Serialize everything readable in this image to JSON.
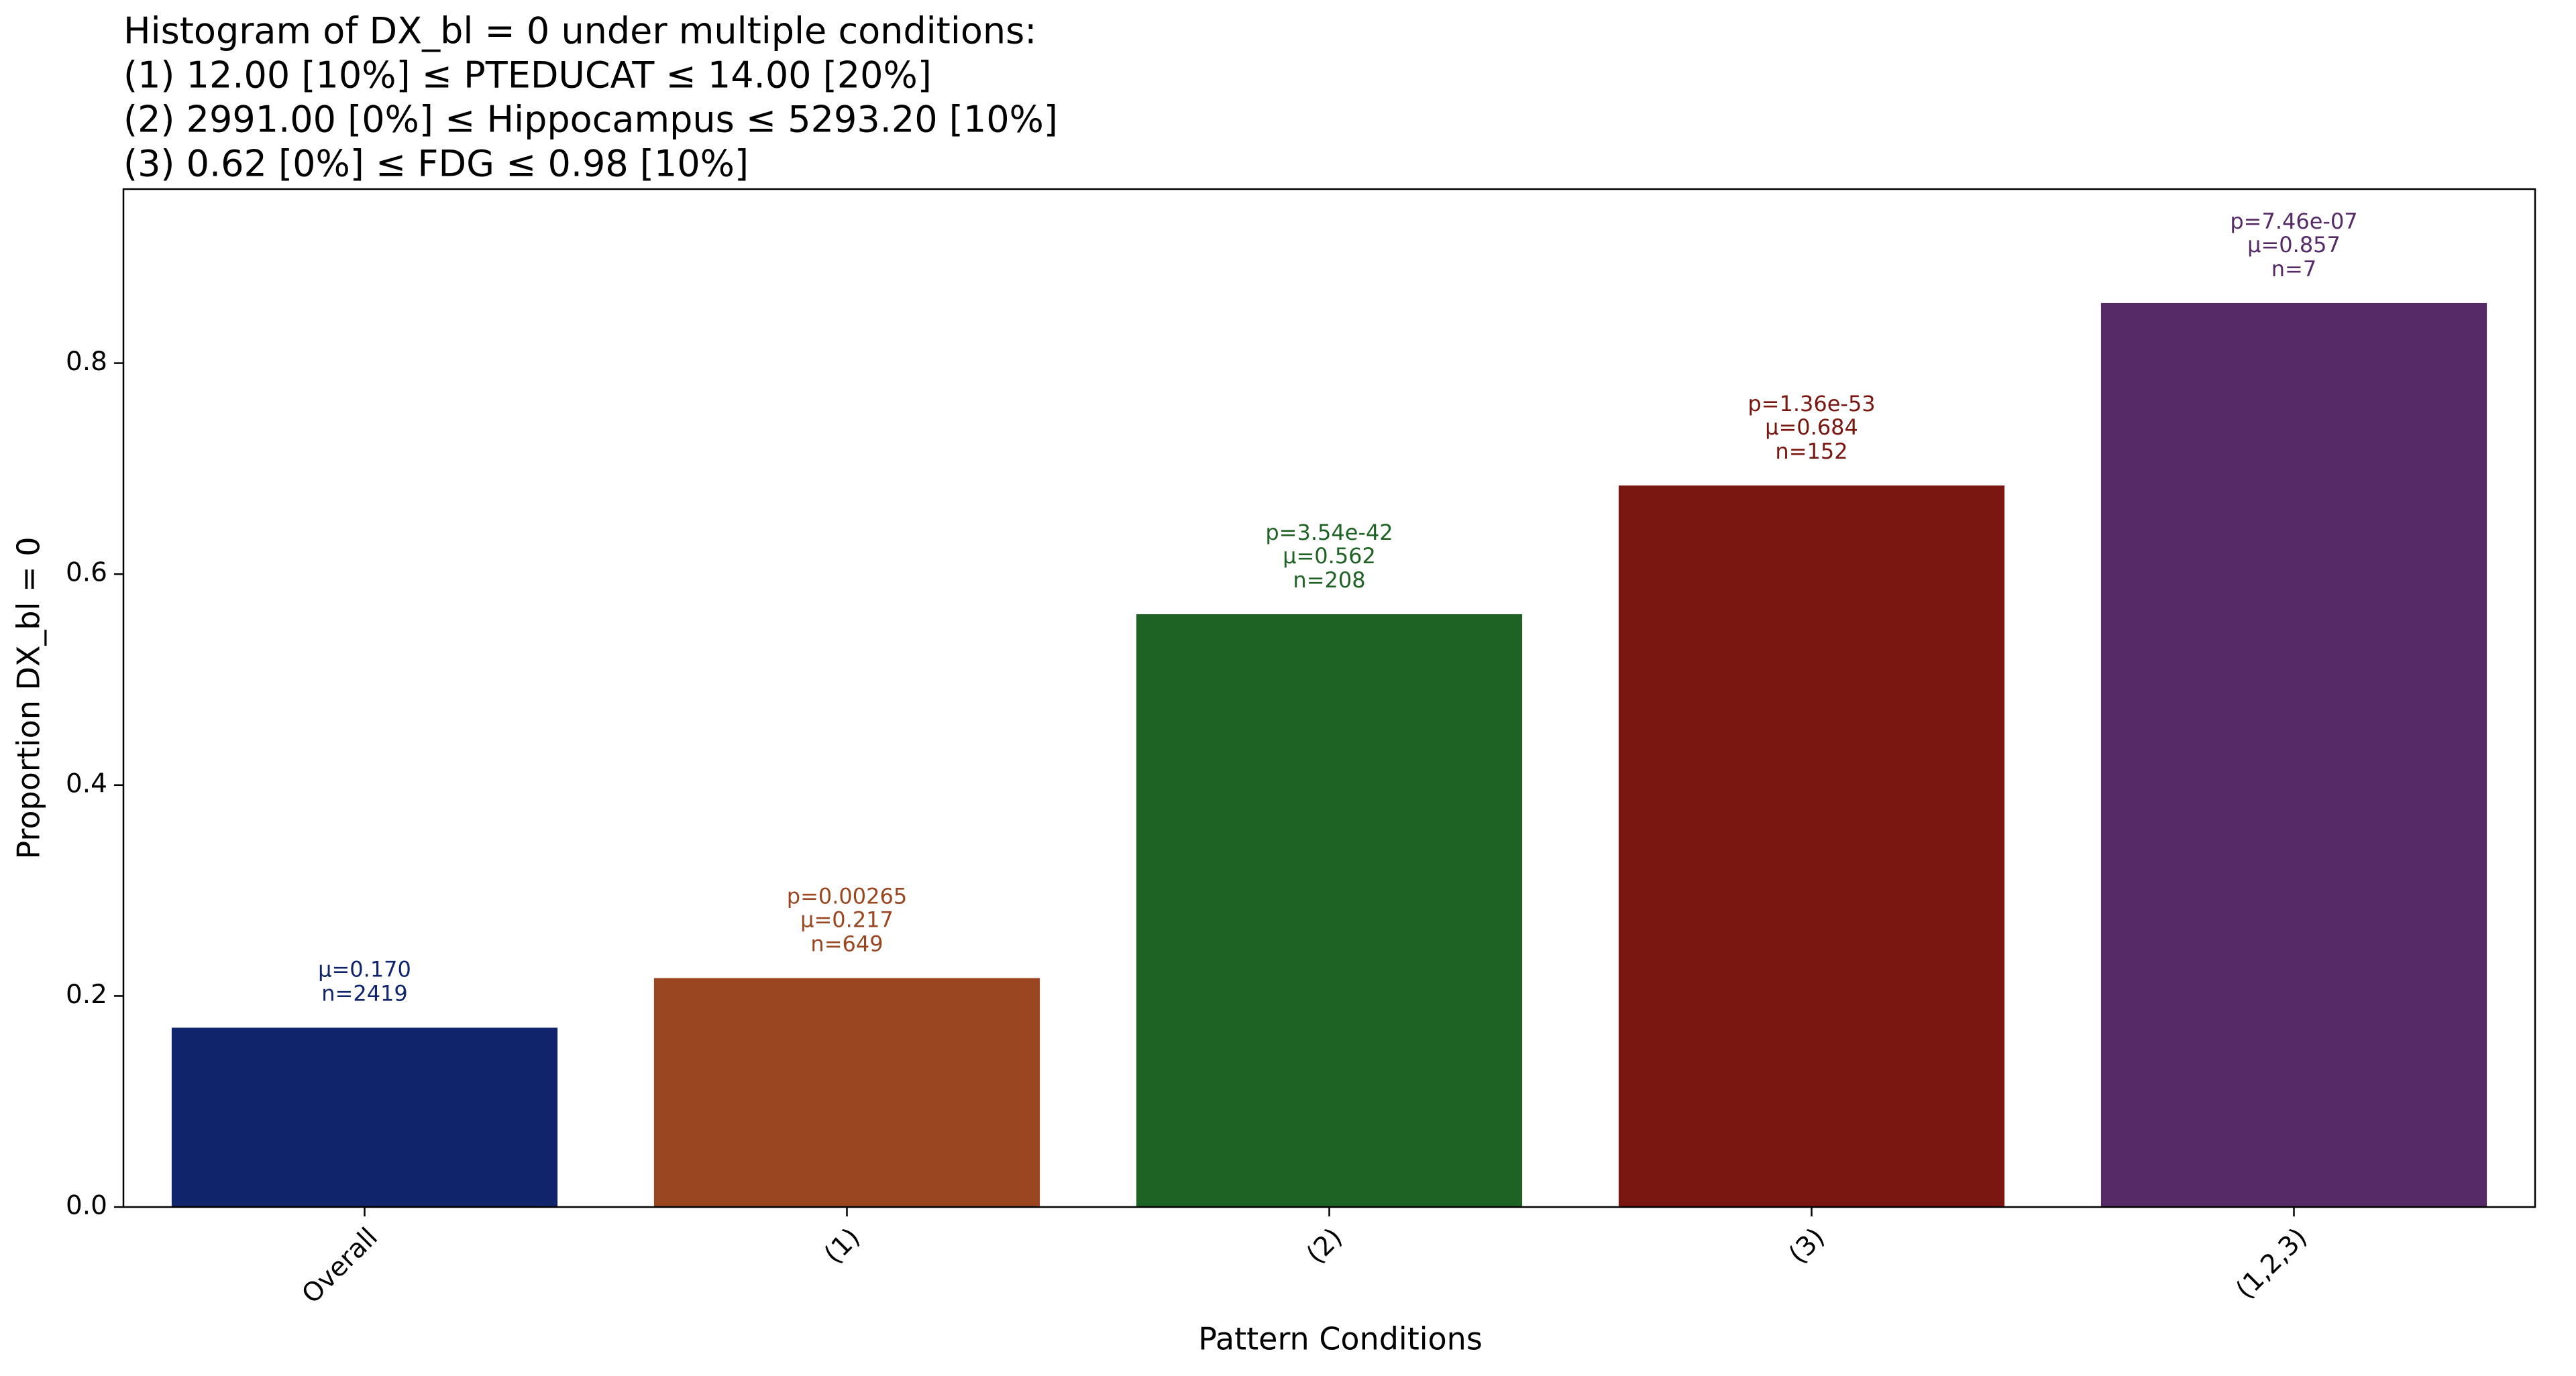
{
  "chart_data": {
    "type": "bar",
    "title": [
      "Histogram of DX_bl = 0 under multiple conditions:",
      "(1) 12.00 [10%] ≤ PTEDUCAT ≤ 14.00 [20%]",
      "(2) 2991.00 [0%] ≤ Hippocampus ≤ 5293.20 [10%]",
      "(3) 0.62 [0%] ≤ FDG ≤ 0.98 [10%]"
    ],
    "x_label": "Pattern Conditions",
    "y_label": "Proportion DX_bl = 0",
    "categories": [
      "Overall",
      "(1)",
      "(2)",
      "(3)",
      "(1,2,3)"
    ],
    "values": [
      0.17,
      0.217,
      0.562,
      0.684,
      0.857
    ],
    "value_labels": [
      "μ=0.170",
      "μ=0.217",
      "μ=0.562",
      "μ=0.684",
      "μ=0.857"
    ],
    "p_labels": [
      null,
      "p=0.00265",
      "p=3.54e-42",
      "p=1.36e-53",
      "p=7.46e-07"
    ],
    "n_labels": [
      "n=2419",
      "n=649",
      "n=208",
      "n=152",
      "n=7"
    ],
    "colors": [
      "#0f246b",
      "#9a4620",
      "#1f6324",
      "#7a1610",
      "#552a66"
    ],
    "ylim": [
      0,
      0.965
    ],
    "yticks": [
      {
        "value": 0,
        "label": "0.0"
      },
      0.2,
      0.4,
      0.6,
      0.8
    ],
    "grid": false
  }
}
